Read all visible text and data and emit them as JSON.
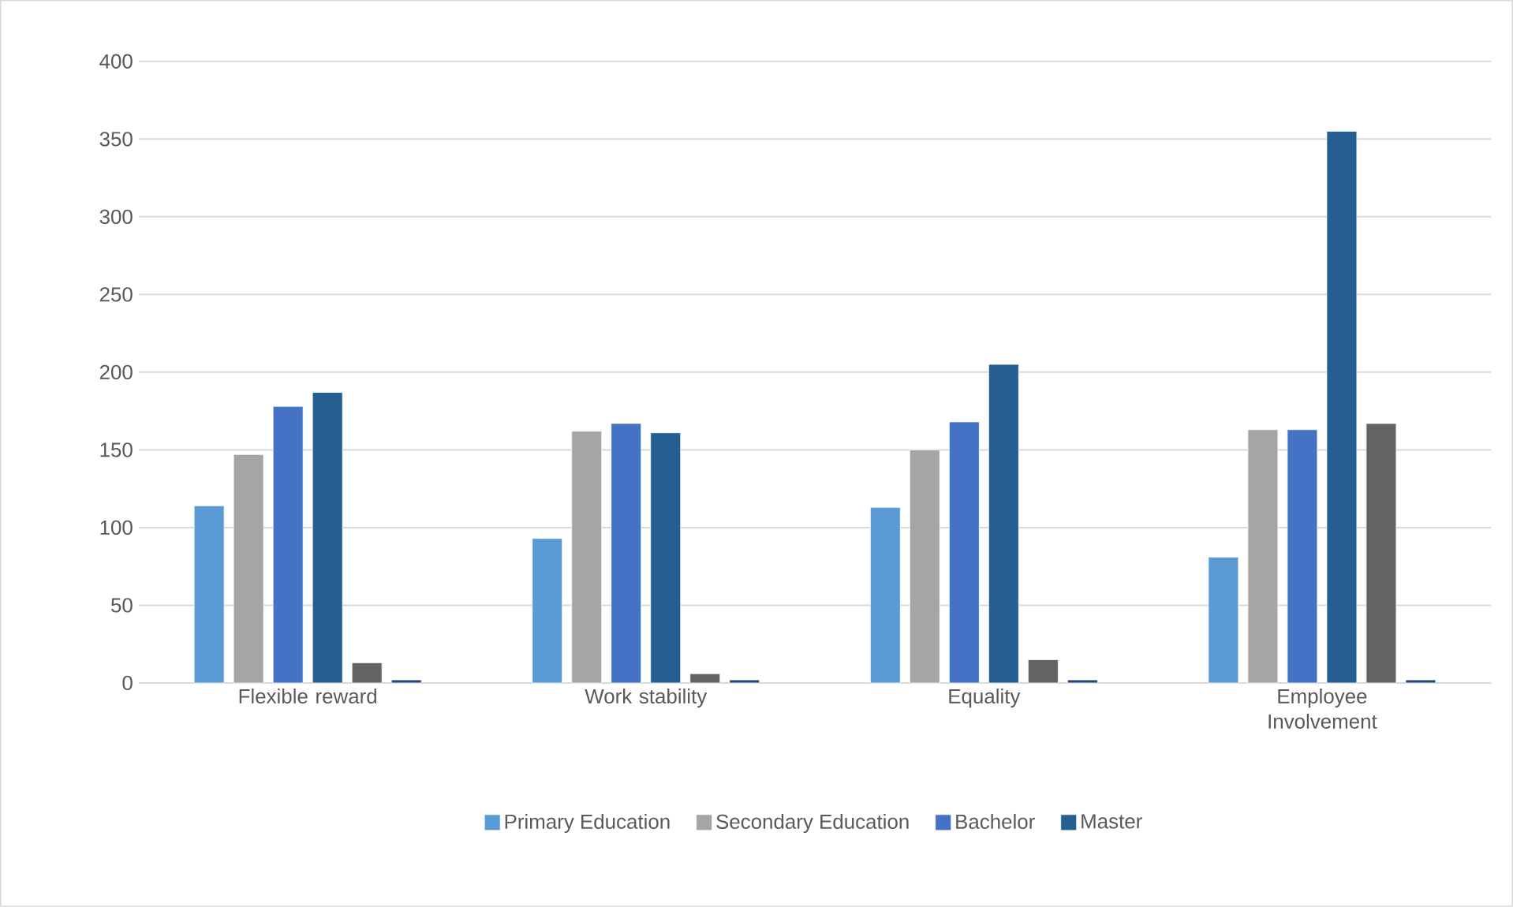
{
  "chart_data": {
    "type": "bar",
    "categories": [
      "Flexible reward",
      "Work stability",
      "Equality",
      "Employee Involvement"
    ],
    "series": [
      {
        "name": "Primary Education",
        "color": "#5b9bd5",
        "values": [
          114,
          93,
          113,
          81
        ]
      },
      {
        "name": "Secondary Education",
        "color": "#a5a5a5",
        "values": [
          147,
          162,
          150,
          163
        ]
      },
      {
        "name": "Bachelor",
        "color": "#4472c4",
        "values": [
          178,
          167,
          168,
          163
        ]
      },
      {
        "name": "Master",
        "color": "#255e91",
        "values": [
          187,
          161,
          205,
          355
        ]
      },
      {
        "color": "#636363",
        "values": [
          13,
          6,
          15,
          167
        ]
      },
      {
        "color": "#264478",
        "values": [
          2,
          2,
          2,
          2
        ]
      }
    ],
    "ylim": [
      0,
      400
    ],
    "yticks": [
      0,
      50,
      100,
      150,
      200,
      250,
      300,
      350,
      400
    ],
    "grid": "y",
    "legend": "bottom"
  }
}
